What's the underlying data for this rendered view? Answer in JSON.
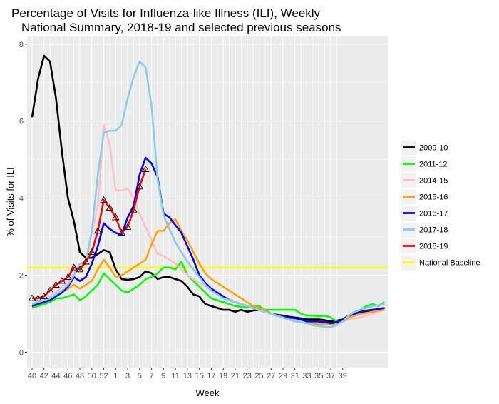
{
  "chart_data": {
    "type": "line",
    "title_line1": "Percentage of Visits for Influenza-like Illness (ILI), Weekly",
    "title_line2": "National Summary, 2018-19 and selected previous seasons",
    "xlabel": "Week",
    "ylabel": "% of Visits for ILI",
    "ylim": [
      -0.4,
      8.2
    ],
    "y_ticks": [
      "0",
      "2",
      "4",
      "6",
      "8"
    ],
    "x_ticks": [
      "40",
      "42",
      "44",
      "46",
      "48",
      "50",
      "52",
      "1",
      "3",
      "5",
      "7",
      "9",
      "11",
      "13",
      "15",
      "17",
      "19",
      "21",
      "23",
      "25",
      "27",
      "29",
      "31",
      "33",
      "35",
      "37",
      "39"
    ],
    "grid": true,
    "legend_position": "right",
    "baseline": {
      "name": "National Baseline",
      "value": 2.2,
      "color": "#ffff00"
    },
    "series": [
      {
        "name": "2009-10",
        "color": "#000000",
        "values": [
          6.1,
          7.1,
          7.7,
          7.55,
          6.6,
          5.2,
          4.0,
          3.4,
          2.6,
          2.45,
          2.45,
          2.55,
          2.65,
          2.6,
          2.15,
          1.9,
          1.88,
          1.9,
          1.95,
          2.1,
          2.05,
          1.9,
          1.95,
          1.95,
          1.9,
          1.85,
          1.7,
          1.5,
          1.45,
          1.25,
          1.2,
          1.15,
          1.1,
          1.1,
          1.05,
          1.1,
          1.05,
          1.08,
          1.1,
          1.1,
          1.0,
          0.97,
          0.95,
          0.92,
          0.9,
          0.88,
          0.85,
          0.85,
          0.85,
          0.83,
          0.8,
          0.82,
          0.85,
          0.95,
          1.0,
          1.02,
          1.05,
          1.08,
          1.1,
          1.15
        ]
      },
      {
        "name": "2011-12",
        "color": "#00ff00",
        "values": [
          1.15,
          1.2,
          1.25,
          1.3,
          1.4,
          1.4,
          1.45,
          1.5,
          1.35,
          1.45,
          1.6,
          1.75,
          2.05,
          1.9,
          1.75,
          1.6,
          1.55,
          1.65,
          1.75,
          1.9,
          1.95,
          2.05,
          2.2,
          2.2,
          2.15,
          2.35,
          2.0,
          1.85,
          1.7,
          1.55,
          1.4,
          1.35,
          1.3,
          1.25,
          1.2,
          1.18,
          1.15,
          1.2,
          1.2,
          1.1,
          1.1,
          1.1,
          1.1,
          1.1,
          1.1,
          1.0,
          0.95,
          0.95,
          0.93,
          0.95,
          0.9,
          0.8,
          0.8,
          0.95,
          1.05,
          1.1,
          1.2,
          1.25,
          1.2,
          1.3
        ]
      },
      {
        "name": "2014-15",
        "color": "#ffc0cb",
        "values": [
          1.2,
          1.25,
          1.35,
          1.45,
          1.55,
          1.7,
          1.85,
          2.05,
          2.2,
          2.3,
          3.1,
          3.8,
          5.9,
          5.4,
          4.2,
          4.2,
          4.25,
          4.0,
          3.6,
          3.25,
          2.9,
          2.55,
          2.5,
          2.4,
          2.3,
          2.15,
          2.0,
          1.9,
          1.8,
          1.7,
          1.6,
          1.5,
          1.45,
          1.4,
          1.3,
          1.25,
          1.2,
          1.15,
          1.1,
          1.05,
          1.0,
          0.95,
          0.9,
          0.85,
          0.82,
          0.8,
          0.8,
          0.8,
          0.78,
          0.75,
          0.75,
          0.76,
          0.8,
          0.85,
          0.88,
          0.9,
          0.95,
          1.0,
          1.05,
          1.1
        ]
      },
      {
        "name": "2015-16",
        "color": "#ffa500",
        "values": [
          1.2,
          1.25,
          1.3,
          1.35,
          1.45,
          1.55,
          1.65,
          1.75,
          1.65,
          1.75,
          1.85,
          2.15,
          2.4,
          2.2,
          1.95,
          2.0,
          2.1,
          2.2,
          2.3,
          2.4,
          2.8,
          3.15,
          3.15,
          3.35,
          3.45,
          3.15,
          2.9,
          2.6,
          2.3,
          2.05,
          1.9,
          1.8,
          1.7,
          1.6,
          1.5,
          1.4,
          1.3,
          1.2,
          1.15,
          1.1,
          1.0,
          0.95,
          0.9,
          0.85,
          0.8,
          0.78,
          0.75,
          0.75,
          0.72,
          0.72,
          0.72,
          0.75,
          0.8,
          0.9,
          0.95,
          1.0,
          1.02,
          1.05,
          1.08,
          1.1
        ]
      },
      {
        "name": "2016-17",
        "color": "#0000ff",
        "values": [
          1.2,
          1.25,
          1.3,
          1.35,
          1.45,
          1.55,
          1.7,
          1.95,
          1.85,
          1.95,
          2.3,
          2.75,
          3.35,
          3.2,
          3.1,
          3.05,
          3.5,
          3.8,
          4.6,
          5.05,
          4.9,
          4.55,
          3.6,
          3.5,
          3.3,
          3.1,
          2.75,
          2.4,
          2.0,
          1.8,
          1.65,
          1.55,
          1.45,
          1.35,
          1.3,
          1.25,
          1.2,
          1.15,
          1.1,
          1.05,
          1.0,
          0.95,
          0.92,
          0.9,
          0.88,
          0.85,
          0.8,
          0.8,
          0.8,
          0.78,
          0.75,
          0.78,
          0.85,
          0.95,
          1.0,
          1.05,
          1.08,
          1.1,
          1.12,
          1.15
        ]
      },
      {
        "name": "2017-18",
        "color": "#87ceeb",
        "values": [
          1.25,
          1.3,
          1.35,
          1.4,
          1.5,
          1.6,
          1.75,
          2.0,
          2.3,
          2.35,
          3.15,
          4.6,
          5.7,
          5.75,
          5.75,
          5.9,
          6.6,
          7.15,
          7.55,
          7.4,
          6.4,
          4.5,
          3.55,
          3.2,
          2.85,
          2.6,
          2.35,
          2.15,
          1.95,
          1.75,
          1.6,
          1.5,
          1.4,
          1.35,
          1.3,
          1.25,
          1.2,
          1.15,
          1.1,
          1.05,
          1.0,
          0.95,
          0.9,
          0.85,
          0.8,
          0.78,
          0.75,
          0.7,
          0.68,
          0.66,
          0.65,
          0.7,
          0.8,
          0.95,
          1.05,
          1.1,
          1.15,
          1.2,
          1.22,
          1.25
        ]
      },
      {
        "name": "2018-19",
        "color": "#ff0000",
        "values": [
          1.4,
          1.4,
          1.45,
          1.6,
          1.75,
          1.85,
          1.95,
          2.2,
          2.15,
          2.35,
          2.6,
          3.15,
          3.95,
          3.75,
          3.5,
          3.1,
          3.25,
          3.7,
          4.3,
          4.75
        ]
      }
    ]
  }
}
